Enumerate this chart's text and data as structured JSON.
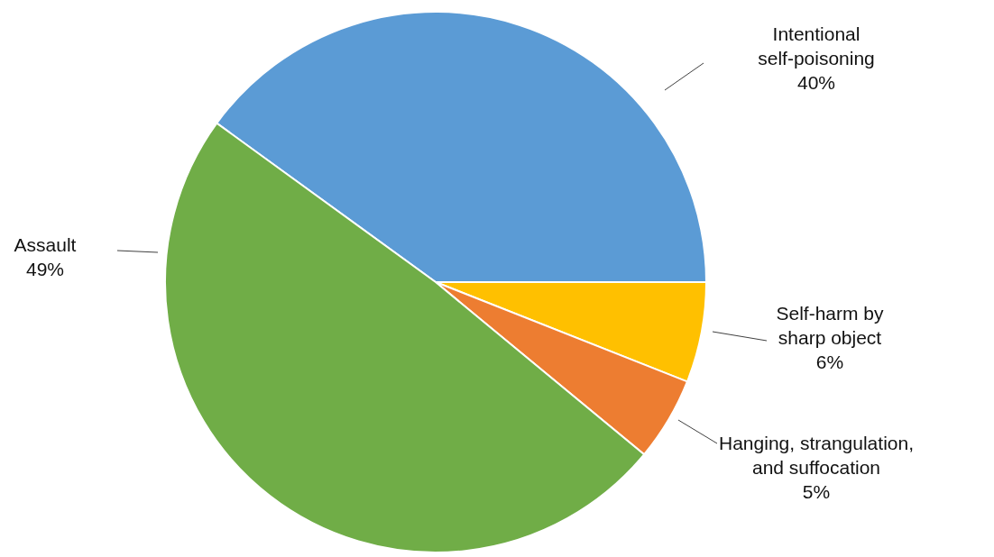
{
  "chart_data": {
    "type": "pie",
    "categories": [
      "Intentional\nself-poisoning",
      "Self-harm by\nsharp object",
      "Hanging, strangulation,\nand suffocation",
      "Assault"
    ],
    "values": [
      40,
      6,
      5,
      49
    ],
    "value_labels": [
      "40%",
      "6%",
      "5%",
      "49%"
    ],
    "colors": [
      "#5b9bd5",
      "#ffc000",
      "#ed7d31",
      "#70ad47"
    ]
  }
}
